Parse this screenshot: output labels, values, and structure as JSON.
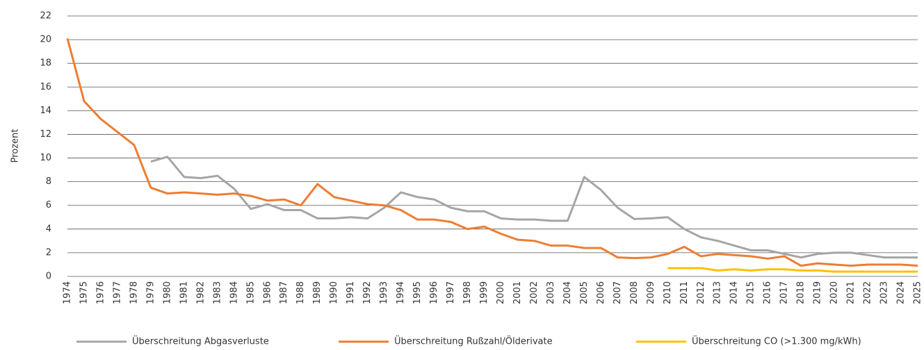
{
  "chart_data": {
    "type": "line",
    "y_label": "Prozent",
    "categories": [
      "1974",
      "1975",
      "1976",
      "1977",
      "1978",
      "1979",
      "1980",
      "1981",
      "1982",
      "1983",
      "1984",
      "1985",
      "1986",
      "1987",
      "1988",
      "1989",
      "1990",
      "1991",
      "1992",
      "1993",
      "1994",
      "1995",
      "1996",
      "1997",
      "1998",
      "1999",
      "2000",
      "2001",
      "2002",
      "2003",
      "2004",
      "2005",
      "2006",
      "2007",
      "2008",
      "2009",
      "2010",
      "2011",
      "2012",
      "2013",
      "2014",
      "2015",
      "2016",
      "2017",
      "2018",
      "2019",
      "2020",
      "2021",
      "2022",
      "2023",
      "2024",
      "2025"
    ],
    "series": [
      {
        "name": "Überschreitung Abgasverluste",
        "color": "#a5a5a5",
        "values": [
          null,
          null,
          null,
          null,
          null,
          9.7,
          10.1,
          8.4,
          8.3,
          8.5,
          7.4,
          5.7,
          6.1,
          5.6,
          5.6,
          4.9,
          4.9,
          5.0,
          4.9,
          5.8,
          7.1,
          6.7,
          6.5,
          5.8,
          5.5,
          5.5,
          4.9,
          4.8,
          4.8,
          4.7,
          4.7,
          8.4,
          7.3,
          5.8,
          4.85,
          4.9,
          5.0,
          4.0,
          3.3,
          3.0,
          2.6,
          2.2,
          2.2,
          1.9,
          1.6,
          1.9,
          2.0,
          2.0,
          1.8,
          1.6,
          1.6,
          1.6
        ]
      },
      {
        "name": "Überschreitung Rußzahl/Ölderivate",
        "color": "#ed7d31",
        "values": [
          20.1,
          14.8,
          13.3,
          12.2,
          11.1,
          7.5,
          7.0,
          7.1,
          7.0,
          6.9,
          7.0,
          6.8,
          6.4,
          6.5,
          6.0,
          7.8,
          6.7,
          6.4,
          6.1,
          6.0,
          5.6,
          4.8,
          4.8,
          4.6,
          4.0,
          4.2,
          3.6,
          3.1,
          3.0,
          2.6,
          2.6,
          2.4,
          2.4,
          1.6,
          1.55,
          1.6,
          1.9,
          2.5,
          1.7,
          1.9,
          1.8,
          1.7,
          1.5,
          1.7,
          0.9,
          1.1,
          1.0,
          0.9,
          1.0,
          1.0,
          1.0,
          0.9
        ]
      },
      {
        "name": "Überschreitung CO (>1.300 mg/kWh)",
        "color": "#ffc000",
        "values": [
          null,
          null,
          null,
          null,
          null,
          null,
          null,
          null,
          null,
          null,
          null,
          null,
          null,
          null,
          null,
          null,
          null,
          null,
          null,
          null,
          null,
          null,
          null,
          null,
          null,
          null,
          null,
          null,
          null,
          null,
          null,
          null,
          null,
          null,
          null,
          null,
          0.7,
          0.7,
          0.7,
          0.5,
          0.6,
          0.5,
          0.6,
          0.6,
          0.5,
          0.5,
          0.4,
          0.4,
          0.4,
          0.4,
          0.4,
          0.4
        ]
      }
    ],
    "ylim": [
      0,
      22
    ],
    "yticks": [
      0,
      2,
      4,
      6,
      8,
      10,
      12,
      14,
      16,
      18,
      20,
      22
    ],
    "grid": true,
    "legend": "bottom"
  }
}
